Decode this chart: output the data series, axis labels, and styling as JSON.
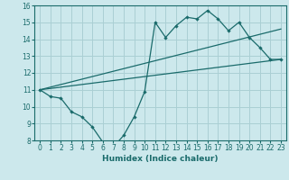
{
  "title": "",
  "xlabel": "Humidex (Indice chaleur)",
  "xlim": [
    -0.5,
    23.5
  ],
  "ylim": [
    8,
    16
  ],
  "xticks": [
    0,
    1,
    2,
    3,
    4,
    5,
    6,
    7,
    8,
    9,
    10,
    11,
    12,
    13,
    14,
    15,
    16,
    17,
    18,
    19,
    20,
    21,
    22,
    23
  ],
  "yticks": [
    8,
    9,
    10,
    11,
    12,
    13,
    14,
    15,
    16
  ],
  "bg_color": "#cce8ec",
  "grid_color": "#aacfd4",
  "line_color": "#1a6b6b",
  "line1_x": [
    0,
    1,
    2,
    3,
    4,
    5,
    6,
    7,
    8,
    9,
    10,
    11,
    12,
    13,
    14,
    15,
    16,
    17,
    18,
    19,
    20,
    21,
    22,
    23
  ],
  "line1_y": [
    11.0,
    10.6,
    10.5,
    9.7,
    9.4,
    8.8,
    7.9,
    7.6,
    8.3,
    9.4,
    10.9,
    15.0,
    14.1,
    14.8,
    15.3,
    15.2,
    15.7,
    15.2,
    14.5,
    15.0,
    14.1,
    13.5,
    12.8,
    12.8
  ],
  "line2_x": [
    0,
    23
  ],
  "line2_y": [
    11.0,
    12.8
  ],
  "line3_x": [
    0,
    23
  ],
  "line3_y": [
    11.0,
    14.6
  ]
}
